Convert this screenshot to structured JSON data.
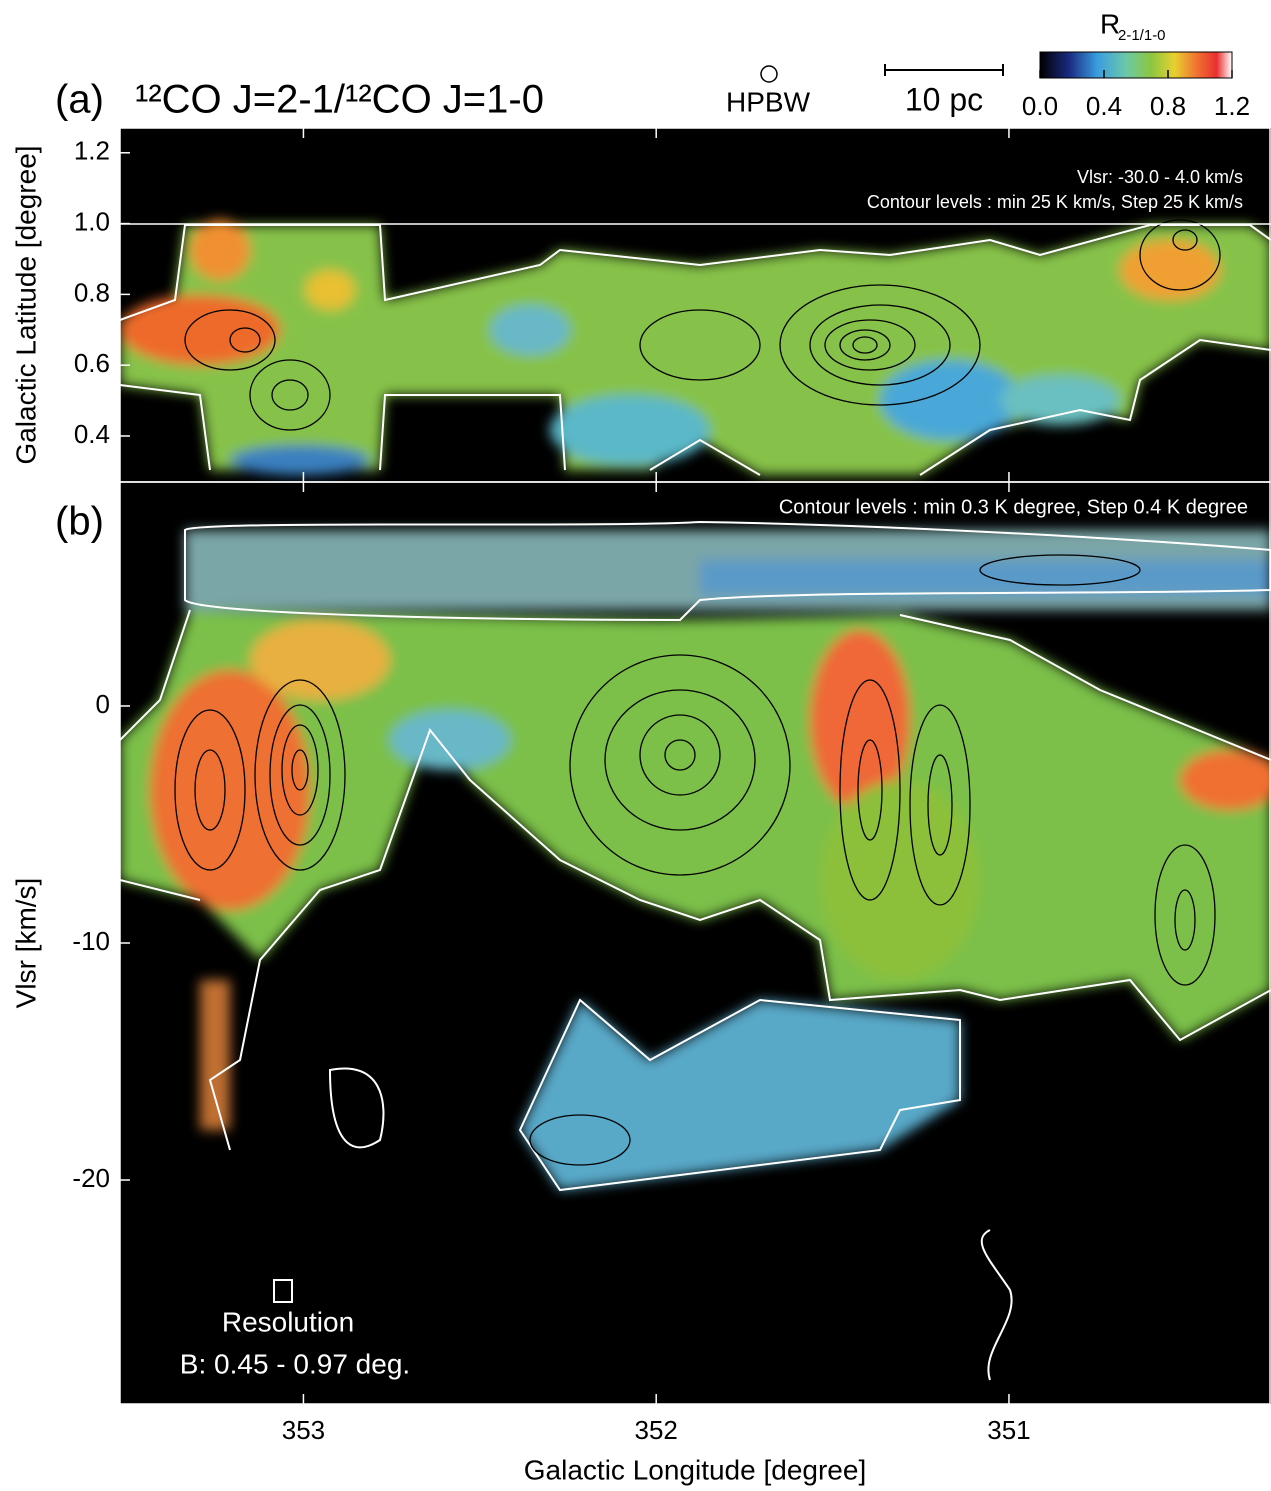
{
  "header": {
    "title": "¹²CO J=2-1/¹²CO J=1-0",
    "hpbw": "HPBW",
    "scale_bar": "10 pc",
    "colorbar": {
      "label": "R",
      "label_sub": "2-1/1-0",
      "lim": [
        0,
        1.2
      ],
      "ticks": [
        {
          "value": 0,
          "label": "0.0"
        },
        0.4,
        0.8,
        {
          "value": 1.2,
          "label": "1.2"
        }
      ]
    }
  },
  "chart_data": [
    {
      "type": "image",
      "label": "(a)",
      "ylabel": "Galactic Latitude [degree]",
      "xlim": [
        353.52,
        350.26
      ],
      "xticks": [
        353,
        352,
        351
      ],
      "ylim": [
        0.27,
        1.27
      ],
      "yticks": [
        1.2,
        {
          "value": 1.0,
          "label": "1.0"
        },
        0.8,
        0.6,
        0.4
      ],
      "annotations": [
        "Vlsr: -30.0 - 4.0 km/s",
        "Contour levels : min 25 K km/s, Step 25 K km/s"
      ]
    },
    {
      "type": "image",
      "label": "(b)",
      "ylabel": "Vlsr [km/s]",
      "xlabel": "Galactic Longitude [degree]",
      "xlim": [
        353.52,
        350.26
      ],
      "xticks": [
        353,
        352,
        351
      ],
      "ylim": [
        -29.45,
        9.45
      ],
      "yticks": [
        0,
        -10,
        -20
      ],
      "annotations": [
        "Contour levels : min 0.3 K degree, Step 0.4 K degree",
        "Resolution",
        "B: 0.45 - 0.97 deg."
      ]
    }
  ]
}
